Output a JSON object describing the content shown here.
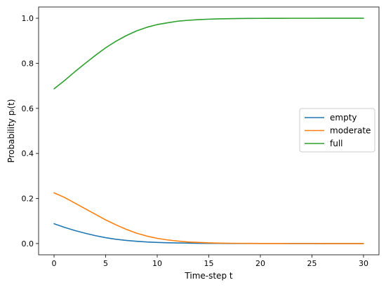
{
  "chart_data": {
    "type": "line",
    "title": "",
    "xlabel": "Time-step t",
    "ylabel": "Probability pᵢ(t)",
    "xlim": [
      -1.5,
      31.5
    ],
    "ylim": [
      -0.05,
      1.05
    ],
    "xticks": [
      0,
      5,
      10,
      15,
      20,
      25,
      30
    ],
    "yticks": [
      0.0,
      0.2,
      0.4,
      0.6,
      0.8,
      1.0
    ],
    "xtick_labels": [
      "0",
      "5",
      "10",
      "15",
      "20",
      "25",
      "30"
    ],
    "ytick_labels": [
      "0.0",
      "0.2",
      "0.4",
      "0.6",
      "0.8",
      "1.0"
    ],
    "grid": false,
    "legend_position": "center-right",
    "x": [
      0,
      1,
      2,
      3,
      4,
      5,
      6,
      7,
      8,
      9,
      10,
      11,
      12,
      13,
      14,
      15,
      16,
      17,
      18,
      19,
      20,
      21,
      22,
      23,
      24,
      25,
      26,
      27,
      28,
      29,
      30
    ],
    "series": [
      {
        "name": "empty",
        "color": "#1f77b4",
        "values": [
          0.088,
          0.072,
          0.058,
          0.046,
          0.035,
          0.026,
          0.019,
          0.014,
          0.01,
          0.007,
          0.005,
          0.0035,
          0.0025,
          0.0018,
          0.0012,
          0.0008,
          0.0006,
          0.0004,
          0.0003,
          0.0002,
          0.0001,
          0.0001,
          0.0001,
          0,
          0,
          0,
          0,
          0,
          0,
          0,
          0
        ]
      },
      {
        "name": "moderate",
        "color": "#ff7f0e",
        "values": [
          0.225,
          0.205,
          0.18,
          0.155,
          0.13,
          0.105,
          0.083,
          0.063,
          0.046,
          0.033,
          0.023,
          0.016,
          0.011,
          0.007,
          0.005,
          0.003,
          0.002,
          0.0013,
          0.0009,
          0.0006,
          0.0004,
          0.0003,
          0.0002,
          0.0001,
          0.0001,
          0.0001,
          0,
          0,
          0,
          0,
          0
        ]
      },
      {
        "name": "full",
        "color": "#2ca02c",
        "values": [
          0.687,
          0.723,
          0.762,
          0.799,
          0.835,
          0.869,
          0.898,
          0.923,
          0.944,
          0.96,
          0.972,
          0.98,
          0.987,
          0.991,
          0.994,
          0.996,
          0.9975,
          0.9983,
          0.9988,
          0.9992,
          0.9995,
          0.9996,
          0.9997,
          0.9999,
          0.9999,
          0.9999,
          1.0,
          1.0,
          1.0,
          1.0,
          1.0
        ]
      }
    ]
  }
}
